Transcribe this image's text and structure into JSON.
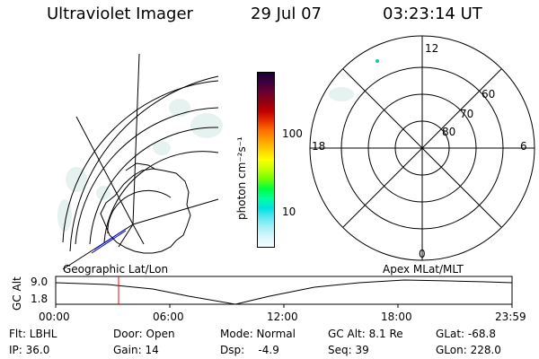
{
  "header": {
    "instrument": "Ultraviolet Imager",
    "date": "29 Jul 07",
    "time": "03:23:14 UT"
  },
  "colorbar": {
    "unit_label": "photon cm⁻²s⁻¹",
    "ticks": [
      "100",
      "10"
    ],
    "colors": [
      "#1a0030",
      "#3d0040",
      "#6a0030",
      "#900010",
      "#c00000",
      "#e83000",
      "#ff7000",
      "#ffa000",
      "#ffd000",
      "#ffff00",
      "#c0ff00",
      "#70ff00",
      "#00ff40",
      "#00ffa0",
      "#00e0e0",
      "#60e8f0",
      "#a8f0f8",
      "#d8f8fc",
      "#f4fdff"
    ]
  },
  "polar_plot": {
    "mlt_labels": [
      "12",
      "18",
      "6",
      "0"
    ],
    "lat_labels": [
      "60",
      "70",
      "80"
    ]
  },
  "timeline": {
    "y_axis_label": "GC Alt",
    "y_ticks": [
      "9.0",
      "1.8"
    ],
    "left_title": "Geographic Lat/Lon",
    "right_title": "Apex MLat/MLT",
    "x_ticks": [
      "00:00",
      "06:00",
      "12:00",
      "18:00",
      "23:59"
    ],
    "marker_color": "#ff0000"
  },
  "footer": {
    "flt": "Flt: LBHL",
    "ip": "IP: 36.0",
    "door": "Door: Open",
    "gain": "Gain: 14",
    "mode": "Mode: Normal",
    "dsp": "Dsp:    -4.9",
    "gc_alt": "GC Alt: 8.1 Re",
    "seq": "Seq: 39",
    "glat": "GLat: -68.8",
    "glon": "GLon: 228.0"
  }
}
